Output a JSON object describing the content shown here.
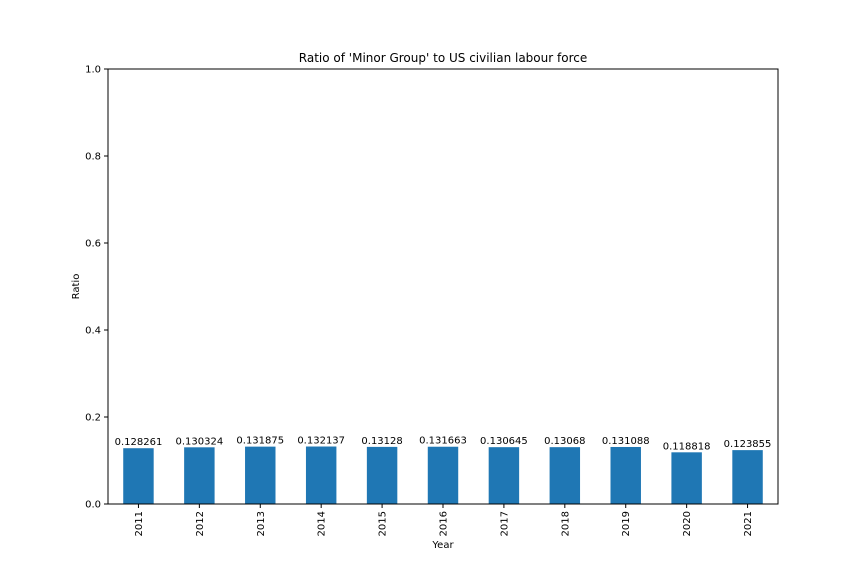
{
  "chart_data": {
    "type": "bar",
    "title": "Ratio of 'Minor Group' to US civilian labour force",
    "xlabel": "Year",
    "ylabel": "Ratio",
    "categories": [
      "2011",
      "2012",
      "2013",
      "2014",
      "2015",
      "2016",
      "2017",
      "2018",
      "2019",
      "2020",
      "2021"
    ],
    "values": [
      0.128261,
      0.130324,
      0.131875,
      0.132137,
      0.13128,
      0.131663,
      0.130645,
      0.13068,
      0.131088,
      0.118818,
      0.123855
    ],
    "data_labels": [
      "0.128261",
      "0.130324",
      "0.131875",
      "0.132137",
      "0.13128",
      "0.131663",
      "0.130645",
      "0.13068",
      "0.131088",
      "0.118818",
      "0.123855"
    ],
    "ylim": [
      0,
      1.0
    ],
    "yticks": [
      "0.0",
      "0.2",
      "0.4",
      "0.6",
      "0.8",
      "1.0"
    ],
    "ytick_values": [
      0,
      0.2,
      0.4,
      0.6,
      0.8,
      1.0
    ],
    "grid": false,
    "bar_color": "#1f77b4"
  }
}
